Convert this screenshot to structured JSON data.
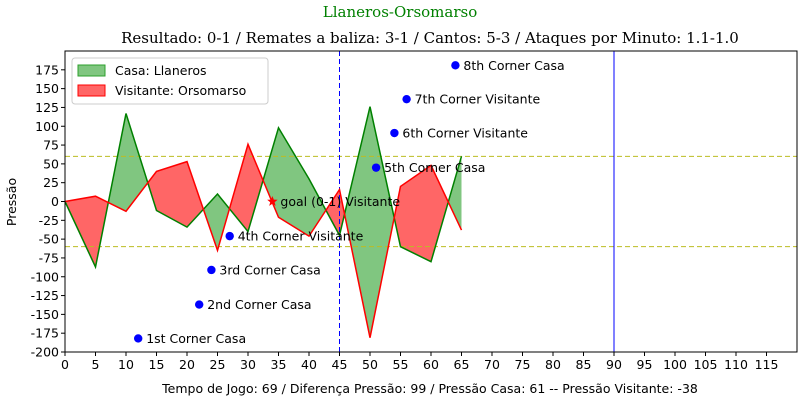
{
  "header": {
    "suptitle": "Llaneros-Orsomarso",
    "suptitle_color": "#008000",
    "title": "Resultado: 0-1 / Remates a baliza: 3-1 / Cantos: 5-3 / Ataques por Minuto: 1.1-1.0"
  },
  "chart_data": {
    "type": "area",
    "xlabel": "Tempo de Jogo: 69 / Diferença Pressão: 99 / Pressão Casa: 61 -- Pressão Visitante: -38",
    "ylabel": "Pressão",
    "label_color": "#9467bd",
    "xlim": [
      0,
      120
    ],
    "ylim": [
      -200,
      200
    ],
    "x_ticks": [
      "0",
      "5",
      "10",
      "15",
      "20",
      "25",
      "30",
      "35",
      "40",
      "45",
      "50",
      "55",
      "60",
      "65",
      "70",
      "75",
      "80",
      "85",
      "90",
      "95",
      "100",
      "105",
      "110",
      "115"
    ],
    "y_ticks": [
      "-200",
      "-175",
      "-150",
      "-125",
      "-100",
      "-75",
      "-50",
      "-25",
      "0",
      "25",
      "50",
      "75",
      "100",
      "125",
      "150",
      "175"
    ],
    "x": [
      0,
      5,
      10,
      15,
      20,
      25,
      30,
      35,
      40,
      45,
      50,
      55,
      60,
      65
    ],
    "pressure": [
      {
        "x": 0,
        "y": 0
      },
      {
        "x": 5,
        "y": -87
      },
      {
        "x": 10,
        "y": 117
      },
      {
        "x": 15,
        "y": -12
      },
      {
        "x": 20,
        "y": -34
      },
      {
        "x": 25,
        "y": 10
      },
      {
        "x": 30,
        "y": -40
      },
      {
        "x": 35,
        "y": 98
      },
      {
        "x": 40,
        "y": 30
      },
      {
        "x": 45,
        "y": -45
      },
      {
        "x": 50,
        "y": 126
      },
      {
        "x": 55,
        "y": -60
      },
      {
        "x": 60,
        "y": -80
      },
      {
        "x": 65,
        "y": 60
      }
    ],
    "visitor_line": [
      {
        "x": 0,
        "y": 0
      },
      {
        "x": 5,
        "y": 7
      },
      {
        "x": 10,
        "y": -13
      },
      {
        "x": 15,
        "y": 40
      },
      {
        "x": 20,
        "y": 53
      },
      {
        "x": 25,
        "y": -65
      },
      {
        "x": 30,
        "y": 76
      },
      {
        "x": 35,
        "y": -21
      },
      {
        "x": 40,
        "y": -46
      },
      {
        "x": 45,
        "y": 16
      },
      {
        "x": 50,
        "y": -181
      },
      {
        "x": 55,
        "y": 20
      },
      {
        "x": 60,
        "y": 48
      },
      {
        "x": 65,
        "y": -38
      }
    ],
    "legend": {
      "position": "upper-left",
      "items": [
        {
          "label": "Casa: Llaneros",
          "color": "#2ca02c"
        },
        {
          "label": "Visitante: Orsomarso",
          "color": "#ff0000"
        }
      ]
    },
    "colors": {
      "home": "#2ca02c",
      "away": "#ff0000",
      "marker": "#0000ff",
      "hline": "#bcbd22",
      "vline": "#0000ff"
    },
    "hlines": [
      60,
      -60
    ],
    "vlines": [
      {
        "x": 45,
        "style": "dashed"
      },
      {
        "x": 90,
        "style": "solid"
      }
    ],
    "events": [
      {
        "x": 12,
        "y": -182,
        "marker": "dot",
        "label": "1st Corner Casa"
      },
      {
        "x": 22,
        "y": -137,
        "marker": "dot",
        "label": "2nd Corner Casa"
      },
      {
        "x": 24,
        "y": -91,
        "marker": "dot",
        "label": "3rd Corner Casa"
      },
      {
        "x": 27,
        "y": -46,
        "marker": "dot",
        "label": "4th Corner Visitante"
      },
      {
        "x": 34,
        "y": 0,
        "marker": "star",
        "label": "goal (0-1) Visitante"
      },
      {
        "x": 51,
        "y": 45,
        "marker": "dot",
        "label": "5th Corner Casa"
      },
      {
        "x": 54,
        "y": 91,
        "marker": "dot",
        "label": "6th Corner Visitante"
      },
      {
        "x": 56,
        "y": 136,
        "marker": "dot",
        "label": "7th Corner Visitante"
      },
      {
        "x": 64,
        "y": 181,
        "marker": "dot",
        "label": "8th Corner Casa"
      }
    ]
  }
}
